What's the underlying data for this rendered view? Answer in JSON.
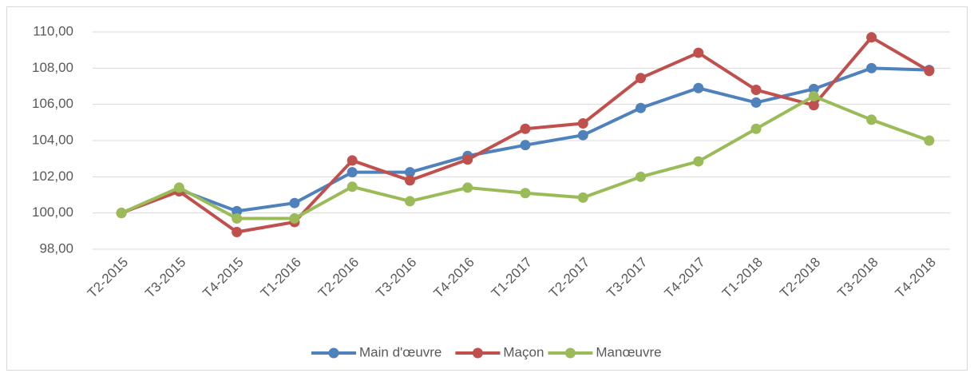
{
  "chart_data": {
    "type": "line",
    "categories": [
      "T2-2015",
      "T3-2015",
      "T4-2015",
      "T1-2016",
      "T2-2016",
      "T3-2016",
      "T4-2016",
      "T1-2017",
      "T2-2017",
      "T3-2017",
      "T4-2017",
      "T1-2018",
      "T2-2018",
      "T3-2018",
      "T4-2018"
    ],
    "series": [
      {
        "name": "Main d'œuvre",
        "color": "#4f81bd",
        "values": [
          100,
          101.3,
          100.1,
          100.55,
          102.25,
          102.25,
          103.15,
          103.75,
          104.3,
          105.8,
          106.9,
          106.1,
          106.85,
          108.0,
          107.9
        ]
      },
      {
        "name": "Maçon",
        "color": "#c0504d",
        "values": [
          100,
          101.2,
          98.95,
          99.5,
          102.9,
          101.8,
          102.95,
          104.65,
          104.95,
          107.45,
          108.85,
          106.8,
          105.95,
          109.7,
          107.85
        ]
      },
      {
        "name": "Manœuvre",
        "color": "#9bbb59",
        "values": [
          100,
          101.4,
          99.7,
          99.7,
          101.45,
          100.65,
          101.4,
          101.1,
          100.85,
          102.0,
          102.85,
          104.65,
          106.45,
          105.15,
          104.0
        ]
      }
    ],
    "ylim": [
      98,
      110
    ],
    "yticks": [
      {
        "value": 98,
        "label": "98,00"
      },
      {
        "value": 100,
        "label": "100,00"
      },
      {
        "value": 102,
        "label": "102,00"
      },
      {
        "value": 104,
        "label": "104,00"
      },
      {
        "value": 106,
        "label": "106,00"
      },
      {
        "value": 108,
        "label": "108,00"
      },
      {
        "value": 110,
        "label": "110,00"
      }
    ],
    "grid": true,
    "legend": "bottom"
  }
}
